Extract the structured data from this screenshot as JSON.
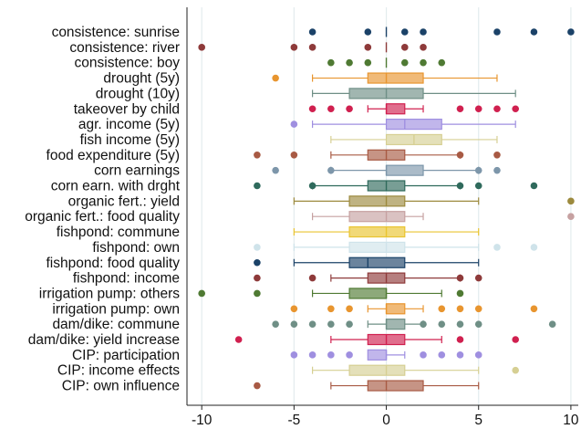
{
  "chart_data": {
    "type": "box",
    "orientation": "horizontal",
    "xlim": [
      -10.8,
      10.4
    ],
    "x_ticks": [
      -10,
      -5,
      0,
      5,
      10
    ],
    "x_tick_labels": [
      "-10",
      "-5",
      "0",
      "5",
      "10"
    ],
    "grid": true,
    "categories": [
      "consistence: sunrise",
      "consistence: river",
      "consistence: boy",
      "drought (5y)",
      "drought (10y)",
      "takeover by child",
      "agr. income (5y)",
      "fish income (5y)",
      "food expenditure (5y)",
      "corn earnings",
      "corn earn. with drght",
      "organic fert.: yield",
      "organic fert.: food quality",
      "fishpond: commune",
      "fishpond: own",
      "fishpond: food quality",
      "fishpond: income",
      "irrigation pump: others",
      "irrigation pump: own",
      "dam/dike: commune",
      "dam/dike: yield increase",
      "CIP: participation",
      "CIP: income effects",
      "CIP: own influence"
    ],
    "boxes": [
      {
        "q1": 0,
        "median": 0,
        "q3": 0,
        "whisker_low": 0,
        "whisker_high": 0,
        "outliers": [
          -4,
          -1,
          1,
          2,
          6,
          8,
          10
        ],
        "color": "#1b4268"
      },
      {
        "q1": 0,
        "median": 0,
        "q3": 0,
        "whisker_low": 0,
        "whisker_high": 0,
        "outliers": [
          -10,
          -5,
          -4,
          -1,
          1,
          2
        ],
        "color": "#8e3a3a"
      },
      {
        "q1": 0,
        "median": 0,
        "q3": 0,
        "whisker_low": 0,
        "whisker_high": 0,
        "outliers": [
          -3,
          -2,
          -1,
          1,
          2,
          3
        ],
        "color": "#4f7a33"
      },
      {
        "q1": -1,
        "median": 0,
        "q3": 2,
        "whisker_low": -4,
        "whisker_high": 6,
        "outliers": [
          -6
        ],
        "color": "#e8952f"
      },
      {
        "q1": -2,
        "median": 0,
        "q3": 2,
        "whisker_low": -4,
        "whisker_high": 7,
        "outliers": [],
        "color": "#6f8f86"
      },
      {
        "q1": 0,
        "median": 0,
        "q3": 1,
        "whisker_low": -1,
        "whisker_high": 2,
        "outliers": [
          -4,
          -3,
          -2,
          4,
          5,
          6,
          7
        ],
        "color": "#d0204f"
      },
      {
        "q1": 0,
        "median": 1,
        "q3": 3,
        "whisker_low": -4,
        "whisker_high": 7,
        "outliers": [
          -5
        ],
        "color": "#9f8fe0"
      },
      {
        "q1": 0,
        "median": 1.5,
        "q3": 3,
        "whisker_low": -3,
        "whisker_high": 6,
        "outliers": [],
        "color": "#d6cf93"
      },
      {
        "q1": -1,
        "median": 0,
        "q3": 1,
        "whisker_low": -3,
        "whisker_high": 4,
        "outliers": [
          -7,
          -5,
          4,
          6
        ],
        "color": "#a85a44"
      },
      {
        "q1": 0,
        "median": 0,
        "q3": 2,
        "whisker_low": -3,
        "whisker_high": 5,
        "outliers": [
          -6,
          -3,
          5,
          6
        ],
        "color": "#7d96aa"
      },
      {
        "q1": -1,
        "median": 0,
        "q3": 1,
        "whisker_low": -4,
        "whisker_high": 4,
        "outliers": [
          -7,
          -4,
          4,
          5,
          8
        ],
        "color": "#2f6a5c"
      },
      {
        "q1": -2,
        "median": 0,
        "q3": 1,
        "whisker_low": -5,
        "whisker_high": 5,
        "outliers": [
          10
        ],
        "color": "#9c8a3e"
      },
      {
        "q1": -2,
        "median": 0,
        "q3": 1,
        "whisker_low": -4,
        "whisker_high": 2,
        "outliers": [
          10
        ],
        "color": "#c6a1a1"
      },
      {
        "q1": -2,
        "median": 0,
        "q3": 1,
        "whisker_low": -5,
        "whisker_high": 5,
        "outliers": [],
        "color": "#e9c430"
      },
      {
        "q1": -2,
        "median": 0,
        "q3": 1,
        "whisker_low": -5,
        "whisker_high": 5,
        "outliers": [
          -7,
          6,
          8
        ],
        "color": "#cfe3ea"
      },
      {
        "q1": -2,
        "median": -1,
        "q3": 1,
        "whisker_low": -5,
        "whisker_high": 5,
        "outliers": [
          -7
        ],
        "color": "#1b4268"
      },
      {
        "q1": -1,
        "median": 0,
        "q3": 1,
        "whisker_low": -3,
        "whisker_high": 4,
        "outliers": [
          -7,
          -4,
          4,
          5
        ],
        "color": "#8e3a3a"
      },
      {
        "q1": -2,
        "median": 0,
        "q3": 0,
        "whisker_low": -4,
        "whisker_high": 3,
        "outliers": [
          -10,
          -7,
          4
        ],
        "color": "#4f7a33"
      },
      {
        "q1": 0,
        "median": 0,
        "q3": 1,
        "whisker_low": -1,
        "whisker_high": 2,
        "outliers": [
          -5,
          -3,
          -2,
          3,
          4,
          5,
          8
        ],
        "color": "#e8952f"
      },
      {
        "q1": 0,
        "median": 0,
        "q3": 1,
        "whisker_low": -1,
        "whisker_high": 2,
        "outliers": [
          -6,
          -5,
          -4,
          -3,
          -2,
          2,
          3,
          4,
          5,
          9
        ],
        "color": "#6f8f86"
      },
      {
        "q1": -1,
        "median": 0,
        "q3": 1,
        "whisker_low": -3,
        "whisker_high": 3,
        "outliers": [
          -8,
          4,
          7
        ],
        "color": "#d0204f"
      },
      {
        "q1": -1,
        "median": 0,
        "q3": 0,
        "whisker_low": -1,
        "whisker_high": 1,
        "outliers": [
          -5,
          -4,
          -3,
          -2,
          2,
          3,
          4,
          5
        ],
        "color": "#9f8fe0"
      },
      {
        "q1": -2,
        "median": 0,
        "q3": 1,
        "whisker_low": -4,
        "whisker_high": 5,
        "outliers": [
          7
        ],
        "color": "#d6cf93"
      },
      {
        "q1": -1,
        "median": 0,
        "q3": 2,
        "whisker_low": -3,
        "whisker_high": 5,
        "outliers": [
          -7
        ],
        "color": "#a85a44"
      }
    ]
  }
}
